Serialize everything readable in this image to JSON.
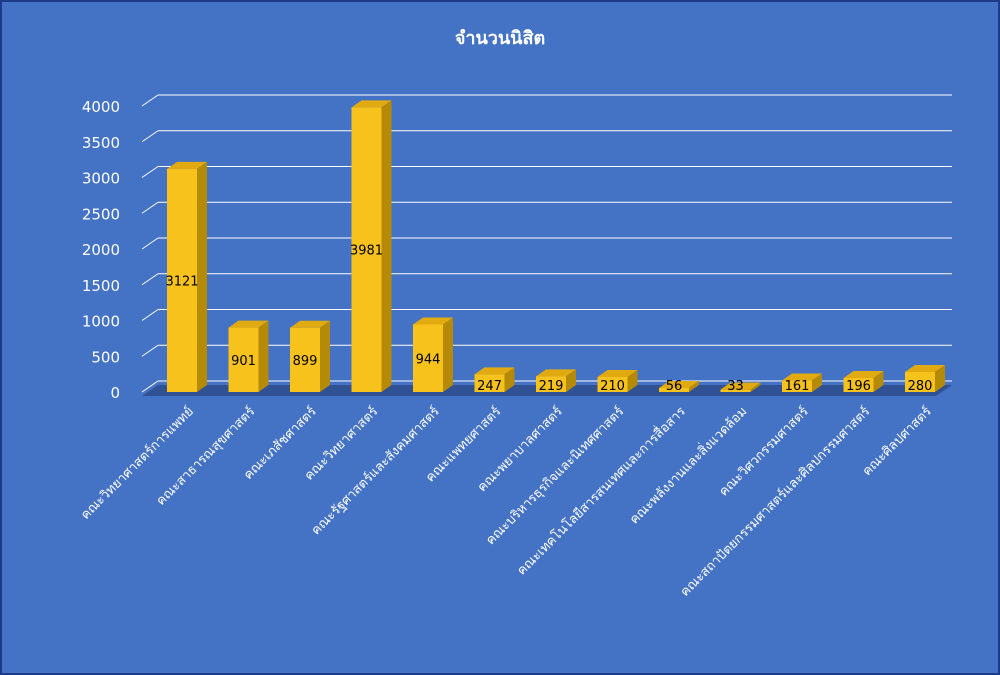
{
  "chart_data": {
    "type": "bar",
    "title": "จำนวนนิสิต",
    "xlabel": "",
    "ylabel": "",
    "ylim": [
      0,
      4000
    ],
    "yticks": [
      0,
      500,
      1000,
      1500,
      2000,
      2500,
      3000,
      3500,
      4000
    ],
    "grid": true,
    "legend": "none",
    "categories": [
      "คณะวิทยาศาสตร์การแพทย์",
      "คณะสาธารณสุขศาสตร์",
      "คณะเภสัชศาสตร์",
      "คณะวิทยาศาสตร์",
      "คณะรัฐศาสตร์และสังคมศาสตร์",
      "คณะแพทยศาสตร์",
      "คณะพยาบาลศาสตร์",
      "คณะบริหารธุรกิจและนิเทศศาสตร์",
      "คณะเทคโนโลยีสารสนเทศและการสื่อสาร",
      "คณะพลังงานและสิ่งแวดล้อม",
      "คณะวิศวกรรมศาสตร์",
      "คณะสถาปัตยกรรมศาสตร์และศิลปกรรมศาสตร์",
      "คณะศิลปศาสตร์"
    ],
    "values": [
      3121,
      901,
      899,
      3981,
      944,
      247,
      219,
      210,
      56,
      33,
      161,
      196,
      280
    ],
    "colors": {
      "background": "#4472c4",
      "bar_front": "#f7c21b",
      "bar_side": "#b58a06",
      "bar_top": "#e0aa10",
      "grid": "#ffffff",
      "floor": "#2f4f8f"
    }
  }
}
